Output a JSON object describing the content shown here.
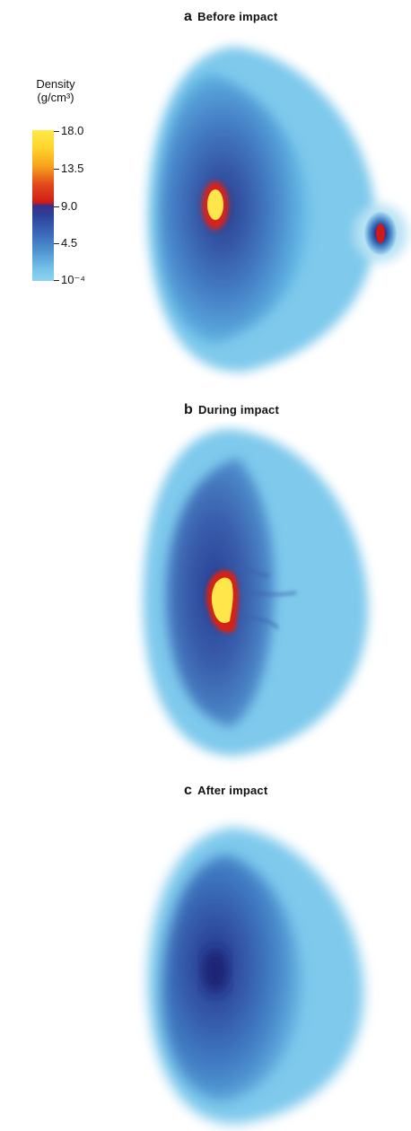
{
  "panels": {
    "a": {
      "letter": "a",
      "title": "Before impact"
    },
    "b": {
      "letter": "b",
      "title": "During impact"
    },
    "c": {
      "letter": "c",
      "title": "After impact"
    }
  },
  "legend": {
    "title_line1": "Density",
    "title_line2": "(g/cm³)",
    "ticks": [
      "18.0",
      "13.5",
      "9.0",
      "4.5",
      "10⁻⁴"
    ]
  },
  "colors": {
    "high": "#ffe94a",
    "mid_high": "#f6a21c",
    "mid": "#cf1c16",
    "low_mid": "#2d3f98",
    "low": "#8fd3ef"
  }
}
